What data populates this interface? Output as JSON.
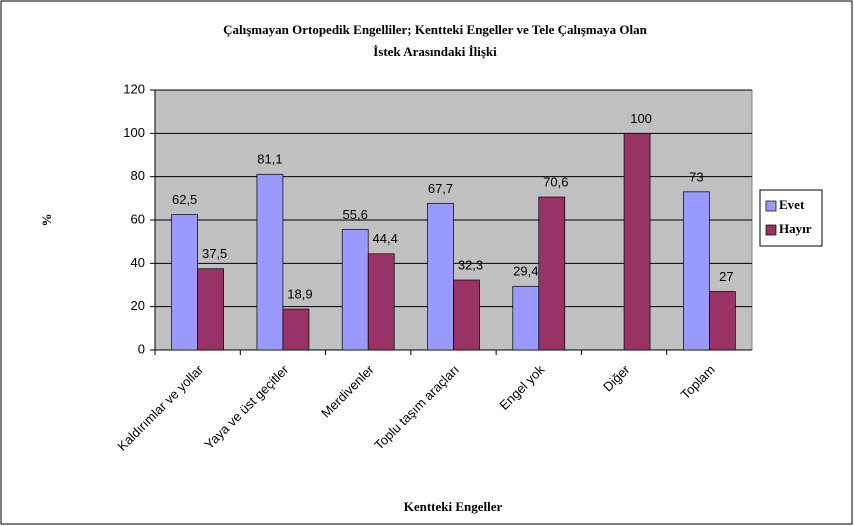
{
  "chart_data": {
    "type": "bar",
    "title": [
      "Çalışmayan Ortopedik Engelliler; Kentteki Engeller ve Tele Çalışmaya Olan",
      "İstek Arasındaki İlişki"
    ],
    "xlabel": "Kentteki Engeller",
    "ylabel": "%",
    "categories": [
      "Kaldırımlar ve yollar",
      "Yaya ve üst geçitler",
      "Merdivenler",
      "Toplu taşım araçları",
      "Engel yok",
      "Diğer",
      "Toplam"
    ],
    "series": [
      {
        "name": "Evet",
        "color": "#9999ff",
        "values": [
          62.5,
          81.1,
          55.6,
          67.7,
          29.4,
          null,
          73
        ],
        "value_labels": [
          "62,5",
          "81,1",
          "55,6",
          "67,7",
          "29,4",
          null,
          "73"
        ]
      },
      {
        "name": "Hayır",
        "color": "#993366",
        "values": [
          37.5,
          18.9,
          44.4,
          32.3,
          70.6,
          100,
          27
        ],
        "value_labels": [
          "37,5",
          "18,9",
          "44,4",
          "32,3",
          "70,6",
          "100",
          "27"
        ]
      }
    ],
    "ylim": [
      0,
      120
    ],
    "yticks": [
      0,
      20,
      40,
      60,
      80,
      100,
      120
    ],
    "grid": true,
    "legend": "right",
    "plot_background": "#c0c0c0"
  }
}
